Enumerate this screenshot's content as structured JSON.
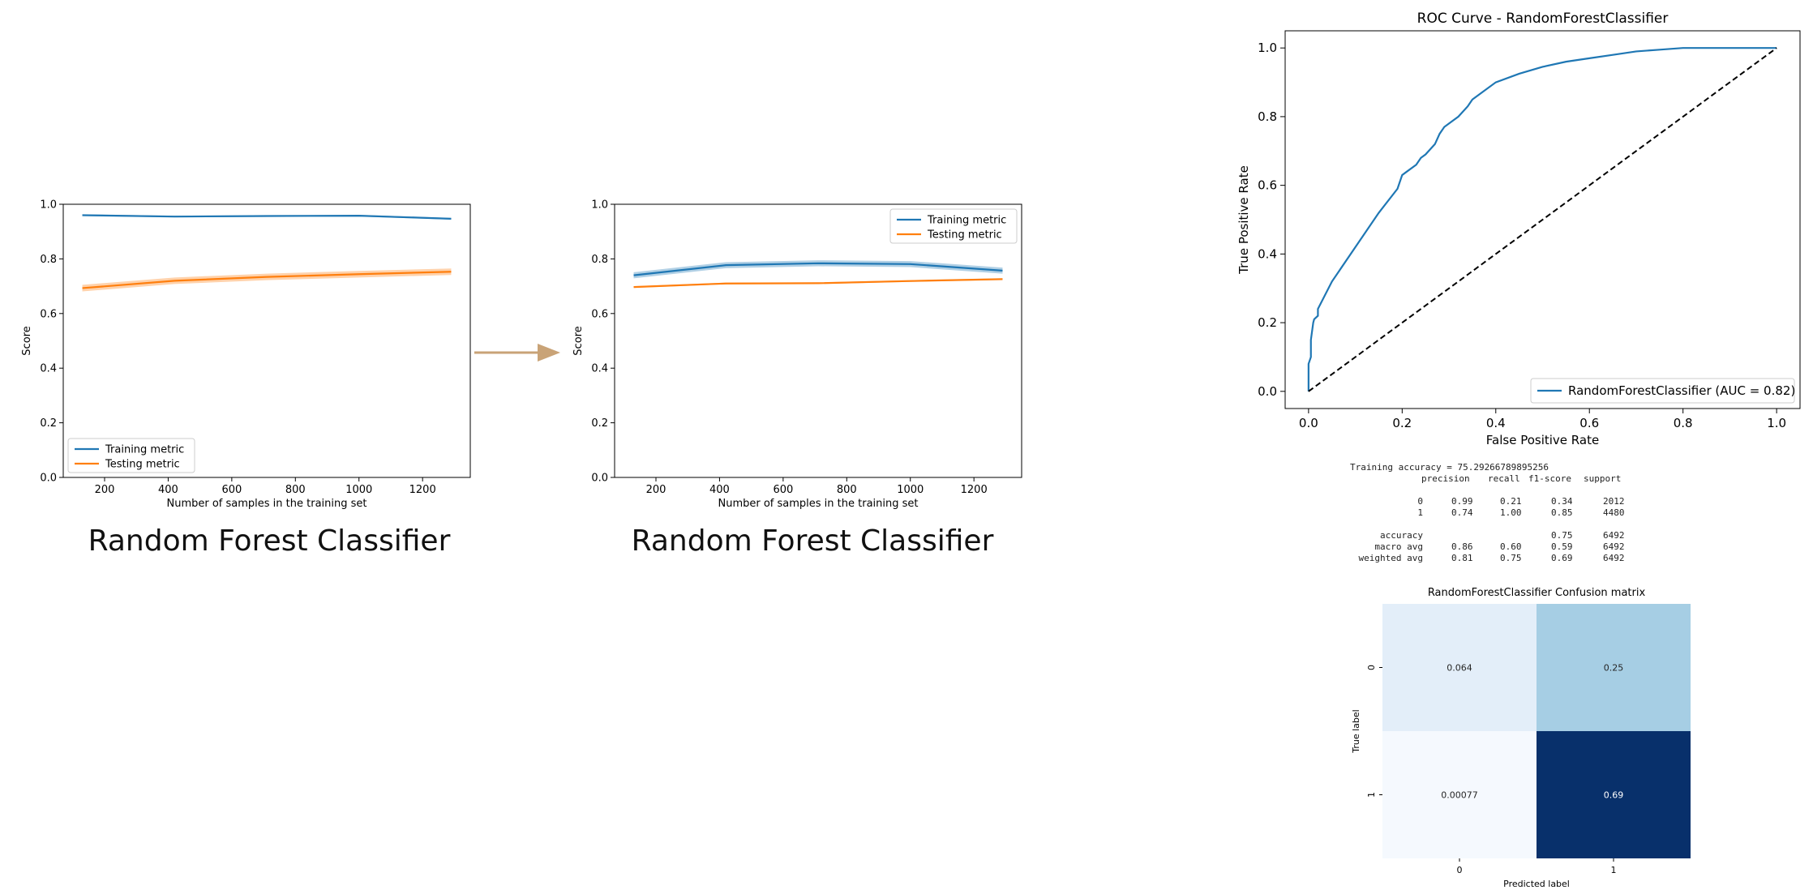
{
  "learning_curve_1": {
    "caption": "Random Forest Classifier"
  },
  "learning_curve_2": {
    "caption": "Random Forest Classifier"
  },
  "report": {
    "training_accuracy_line": "Training accuracy =  75.29266789895256",
    "headers": [
      "precision",
      "recall",
      "f1-score",
      "support"
    ],
    "rows": [
      {
        "label": "0",
        "cells": [
          "0.99",
          "0.21",
          "0.34",
          "2012"
        ]
      },
      {
        "label": "1",
        "cells": [
          "0.74",
          "1.00",
          "0.85",
          "4480"
        ]
      },
      {
        "label": "",
        "cells": [
          "",
          "",
          "",
          ""
        ]
      },
      {
        "label": "accuracy",
        "cells": [
          "",
          "",
          "0.75",
          "6492"
        ]
      },
      {
        "label": "macro avg",
        "cells": [
          "0.86",
          "0.60",
          "0.59",
          "6492"
        ]
      },
      {
        "label": "weighted avg",
        "cells": [
          "0.81",
          "0.75",
          "0.69",
          "6492"
        ]
      }
    ]
  },
  "chart_data": [
    {
      "type": "line",
      "xlabel": "Number of samples in the training set",
      "ylabel": "Score",
      "xlim": [
        70,
        1350
      ],
      "ylim": [
        0.0,
        1.0
      ],
      "xticks": [
        200,
        400,
        600,
        800,
        1000,
        1200
      ],
      "yticks": [
        0.0,
        0.2,
        0.4,
        0.6,
        0.8,
        1.0
      ],
      "legend": "lower-left",
      "grid": false,
      "x": [
        130,
        420,
        710,
        1000,
        1290
      ],
      "series": [
        {
          "name": "Training metric",
          "color": "#1f77b4",
          "values": [
            0.96,
            0.955,
            0.957,
            0.958,
            0.947
          ],
          "band": 0.003
        },
        {
          "name": "Testing metric",
          "color": "#ff7f0e",
          "values": [
            0.693,
            0.72,
            0.734,
            0.744,
            0.753
          ],
          "band": 0.012
        }
      ]
    },
    {
      "type": "line",
      "xlabel": "Number of samples in the training set",
      "ylabel": "Score",
      "xlim": [
        70,
        1350
      ],
      "ylim": [
        0.0,
        1.0
      ],
      "xticks": [
        200,
        400,
        600,
        800,
        1000,
        1200
      ],
      "yticks": [
        0.0,
        0.2,
        0.4,
        0.6,
        0.8,
        1.0
      ],
      "legend": "top-right",
      "grid": false,
      "x": [
        130,
        420,
        710,
        1000,
        1290
      ],
      "series": [
        {
          "name": "Training metric",
          "color": "#1f77b4",
          "values": [
            0.74,
            0.777,
            0.784,
            0.781,
            0.757
          ],
          "band": 0.011
        },
        {
          "name": "Testing metric",
          "color": "#ff7f0e",
          "values": [
            0.697,
            0.71,
            0.711,
            0.719,
            0.726
          ],
          "band": 0.003
        }
      ]
    },
    {
      "type": "line",
      "title": "ROC Curve - RandomForestClassifier",
      "xlabel": "False Positive Rate",
      "ylabel": "True Positive Rate",
      "xlim": [
        -0.05,
        1.05
      ],
      "ylim": [
        -0.05,
        1.05
      ],
      "xticks": [
        0.0,
        0.2,
        0.4,
        0.6,
        0.8,
        1.0
      ],
      "yticks": [
        0.0,
        0.2,
        0.4,
        0.6,
        0.8,
        1.0
      ],
      "legend": "lower-right",
      "grid": false,
      "series": [
        {
          "name": "RandomForestClassifier (AUC = 0.82)",
          "color": "#1f77b4",
          "x": [
            0.0,
            0.0,
            0.005,
            0.005,
            0.01,
            0.012,
            0.02,
            0.02,
            0.05,
            0.1,
            0.15,
            0.19,
            0.2,
            0.21,
            0.23,
            0.24,
            0.25,
            0.27,
            0.28,
            0.29,
            0.3,
            0.32,
            0.34,
            0.35,
            0.37,
            0.4,
            0.45,
            0.5,
            0.55,
            0.6,
            0.65,
            0.7,
            0.75,
            0.8,
            0.9,
            1.0
          ],
          "y": [
            0.0,
            0.08,
            0.1,
            0.15,
            0.2,
            0.21,
            0.22,
            0.24,
            0.32,
            0.42,
            0.52,
            0.59,
            0.63,
            0.64,
            0.66,
            0.68,
            0.69,
            0.72,
            0.75,
            0.77,
            0.78,
            0.8,
            0.83,
            0.85,
            0.87,
            0.9,
            0.925,
            0.945,
            0.96,
            0.97,
            0.98,
            0.99,
            0.995,
            1.0,
            1.0,
            1.0
          ]
        },
        {
          "name": "",
          "color": "#000000",
          "dashed": true,
          "x": [
            0.0,
            1.0
          ],
          "y": [
            0.0,
            1.0
          ]
        }
      ]
    },
    {
      "type": "heatmap",
      "title": "RandomForestClassifier Confusion matrix",
      "xlabel": "Predicted label",
      "ylabel": "True label",
      "xticks": [
        "0",
        "1"
      ],
      "yticks": [
        "0",
        "1"
      ],
      "values": [
        [
          0.064,
          0.25
        ],
        [
          0.00077,
          0.69
        ]
      ],
      "labels": [
        [
          "0.064",
          "0.25"
        ],
        [
          "0.00077",
          "0.69"
        ]
      ],
      "colors": [
        [
          "#e3eef9",
          "#a6cee4"
        ],
        [
          "#f5f9fe",
          "#08306b"
        ]
      ],
      "text_colors": [
        [
          "#262626",
          "#262626"
        ],
        [
          "#262626",
          "#ffffff"
        ]
      ]
    }
  ]
}
